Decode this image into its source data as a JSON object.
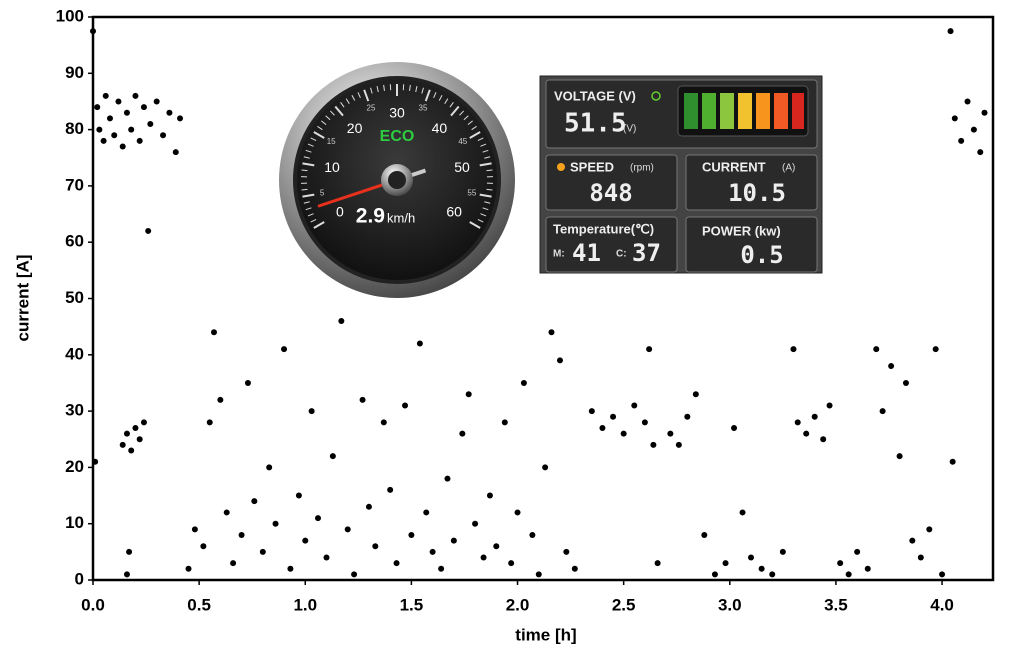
{
  "chart_data": {
    "type": "scatter",
    "xlabel": "time [h]",
    "ylabel": "current [A]",
    "x": [
      0.0,
      0.01,
      0.02,
      0.03,
      0.05,
      0.06,
      0.08,
      0.1,
      0.12,
      0.14,
      0.16,
      0.18,
      0.2,
      0.22,
      0.24,
      0.27,
      0.3,
      0.33,
      0.36,
      0.39,
      0.41,
      0.14,
      0.16,
      0.18,
      0.2,
      0.22,
      0.24,
      0.26,
      0.17,
      0.16,
      0.45,
      0.48,
      0.52,
      0.55,
      0.57,
      0.6,
      0.63,
      0.66,
      0.7,
      0.73,
      0.76,
      0.8,
      0.83,
      0.86,
      0.9,
      0.93,
      0.97,
      1.0,
      1.03,
      1.06,
      1.1,
      1.13,
      1.17,
      1.2,
      1.23,
      1.27,
      1.3,
      1.33,
      1.37,
      1.4,
      1.43,
      1.47,
      1.5,
      1.54,
      1.57,
      1.6,
      1.64,
      1.67,
      1.7,
      1.74,
      1.77,
      1.8,
      1.84,
      1.87,
      1.9,
      1.94,
      1.97,
      2.0,
      2.03,
      2.07,
      2.1,
      2.13,
      2.16,
      2.2,
      2.23,
      2.27,
      2.35,
      2.4,
      2.45,
      2.5,
      2.55,
      2.6,
      2.64,
      2.62,
      2.66,
      2.72,
      2.76,
      2.8,
      2.84,
      2.88,
      2.93,
      2.98,
      3.02,
      3.06,
      3.1,
      3.15,
      3.2,
      3.25,
      3.3,
      3.32,
      3.36,
      3.4,
      3.44,
      3.47,
      3.52,
      3.56,
      3.6,
      3.65,
      3.69,
      3.72,
      3.76,
      3.8,
      3.83,
      3.86,
      3.9,
      3.94,
      3.97,
      4.0,
      4.04,
      4.05,
      4.06,
      4.09,
      4.12,
      4.15,
      4.18,
      4.2
    ],
    "series": [
      {
        "color": "#000000",
        "values": [
          97.5,
          21,
          84,
          80,
          78,
          86,
          82,
          79,
          85,
          77,
          83,
          80,
          86,
          78,
          84,
          81,
          85,
          79,
          83,
          76,
          82,
          24,
          26,
          23,
          27,
          25,
          28,
          62,
          5,
          1,
          2,
          9,
          6,
          28,
          44,
          32,
          12,
          3,
          8,
          35,
          14,
          5,
          20,
          10,
          41,
          2,
          15,
          7,
          30,
          11,
          4,
          22,
          46,
          9,
          1,
          32,
          13,
          6,
          28,
          16,
          3,
          31,
          8,
          42,
          12,
          5,
          2,
          18,
          7,
          26,
          33,
          10,
          4,
          15,
          6,
          28,
          3,
          12,
          35,
          8,
          1,
          20,
          44,
          39,
          5,
          2,
          30,
          27,
          29,
          26,
          31,
          28,
          24,
          41,
          3,
          26,
          24,
          29,
          33,
          8,
          1,
          3,
          27,
          12,
          4,
          2,
          1,
          5,
          41,
          28,
          26,
          29,
          25,
          31,
          3,
          1,
          5,
          2,
          41,
          30,
          38,
          22,
          35,
          7,
          4,
          9,
          41,
          1,
          97.5,
          21,
          82,
          78,
          85,
          80,
          76,
          83
        ]
      }
    ],
    "xlim": [
      0,
      4.24
    ],
    "ylim": [
      0,
      100
    ],
    "xticks": [
      {
        "value": 0,
        "label": "0.0"
      },
      {
        "value": 0.5,
        "label": "0.5"
      },
      {
        "value": 1,
        "label": "1.0"
      },
      {
        "value": 1.5,
        "label": "1.5"
      },
      {
        "value": 2,
        "label": "2.0"
      },
      {
        "value": 2.5,
        "label": "2.5"
      },
      {
        "value": 3,
        "label": "3.0"
      },
      {
        "value": 3.5,
        "label": "3.5"
      },
      {
        "value": 4,
        "label": "4.0"
      }
    ],
    "yticks": [
      0,
      10,
      20,
      30,
      40,
      50,
      60,
      70,
      80,
      90,
      100
    ]
  },
  "dashboard": {
    "gauge": {
      "major_ticks": [
        0,
        10,
        20,
        30,
        40,
        50,
        60
      ],
      "minor_ticks": [
        5,
        15,
        25,
        35,
        45,
        55
      ],
      "mode": "ECO",
      "speed": 2.9,
      "speed_unit": "km/h"
    },
    "voltage": {
      "label": "VOLTAGE (V)",
      "value": 51.5,
      "unit": "(V)"
    },
    "speed": {
      "label": "SPEED",
      "unit": "(rpm)",
      "value": 848
    },
    "current": {
      "label": "CURRENT",
      "unit": "(A)",
      "value": 10.5
    },
    "temperature": {
      "label": "Temperature(℃)",
      "m_label": "M:",
      "m_value": 41,
      "c_label": "C:",
      "c_value": 37
    },
    "power": {
      "label": "POWER (kw)",
      "value": 0.5
    }
  }
}
